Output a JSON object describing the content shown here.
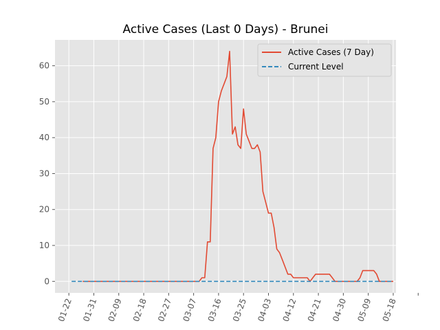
{
  "chart_data": {
    "type": "line",
    "title": "Active Cases (Last 0 Days) - Brunei",
    "xlabel": "",
    "ylabel": "",
    "x_tick_labels": [
      "01-22",
      "01-31",
      "02-09",
      "02-18",
      "02-27",
      "03-07",
      "03-16",
      "03-25",
      "04-03",
      "04-12",
      "04-21",
      "04-30",
      "05-09",
      "05-18"
    ],
    "y_ticks": [
      0,
      10,
      20,
      30,
      40,
      50,
      60
    ],
    "xlim": [
      -5,
      118
    ],
    "ylim": [
      -3.2,
      67.2
    ],
    "grid": true,
    "legend_position": "top-right",
    "legend": [
      "Active Cases (7 Day)",
      "Current Level"
    ],
    "colors": {
      "active": "#e24a33",
      "current": "#348abd",
      "background": "#e5e5e5",
      "grid": "#ffffff"
    },
    "series": [
      {
        "name": "Active Cases (7 Day)",
        "style": "solid",
        "points": [
          [
            5,
            0
          ],
          [
            10,
            0
          ],
          [
            20,
            0
          ],
          [
            30,
            0
          ],
          [
            40,
            0
          ],
          [
            46,
            0
          ],
          [
            47,
            0
          ],
          [
            48,
            1
          ],
          [
            49,
            1
          ],
          [
            50,
            11
          ],
          [
            51,
            11
          ],
          [
            52,
            37
          ],
          [
            53,
            40
          ],
          [
            54,
            50
          ],
          [
            55,
            53
          ],
          [
            56,
            55
          ],
          [
            57,
            57
          ],
          [
            58,
            64
          ],
          [
            59,
            41
          ],
          [
            60,
            43
          ],
          [
            61,
            38
          ],
          [
            62,
            37
          ],
          [
            63,
            48
          ],
          [
            64,
            41
          ],
          [
            65,
            39
          ],
          [
            66,
            37
          ],
          [
            67,
            37
          ],
          [
            68,
            38
          ],
          [
            69,
            36
          ],
          [
            70,
            25
          ],
          [
            71,
            22
          ],
          [
            72,
            19
          ],
          [
            73,
            19
          ],
          [
            74,
            15
          ],
          [
            75,
            9
          ],
          [
            76,
            8
          ],
          [
            77,
            6
          ],
          [
            78,
            4
          ],
          [
            79,
            2
          ],
          [
            80,
            2
          ],
          [
            81,
            1
          ],
          [
            82,
            1
          ],
          [
            83,
            1
          ],
          [
            84,
            1
          ],
          [
            85,
            1
          ],
          [
            86,
            1
          ],
          [
            87,
            0
          ],
          [
            88,
            1
          ],
          [
            89,
            2
          ],
          [
            90,
            2
          ],
          [
            91,
            2
          ],
          [
            92,
            2
          ],
          [
            93,
            2
          ],
          [
            94,
            2
          ],
          [
            95,
            1
          ],
          [
            96,
            0
          ],
          [
            97,
            0
          ],
          [
            100,
            0
          ],
          [
            104,
            0
          ],
          [
            105,
            1
          ],
          [
            106,
            3
          ],
          [
            107,
            3
          ],
          [
            108,
            3
          ],
          [
            109,
            3
          ],
          [
            110,
            3
          ],
          [
            111,
            2
          ],
          [
            112,
            0
          ],
          [
            113,
            0
          ],
          [
            114,
            0
          ],
          [
            116,
            0
          ],
          [
            117,
            0
          ]
        ]
      },
      {
        "name": "Current Level",
        "style": "dashed",
        "points": [
          [
            1,
            0
          ],
          [
            117,
            0
          ]
        ]
      }
    ]
  }
}
